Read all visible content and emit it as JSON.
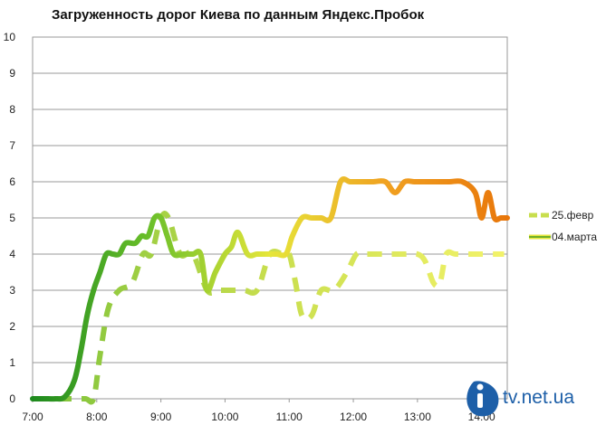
{
  "chart_data": {
    "type": "line",
    "title": "Загруженность дорог Киева по данным Яндекс.Пробок",
    "xlabel": "",
    "ylabel": "",
    "x_ticks": [
      "7:00",
      "8:00",
      "9:00",
      "10:00",
      "11:00",
      "12:00",
      "13:00",
      "14:00"
    ],
    "x_range": [
      7.0,
      14.4
    ],
    "y_ticks": [
      "0",
      "1",
      "2",
      "3",
      "4",
      "5",
      "6",
      "7",
      "8",
      "9",
      "10"
    ],
    "ylim": [
      0,
      10
    ],
    "grid": "horizontal",
    "legend_position": "right",
    "series": [
      {
        "name": "25.февр",
        "style": "dashed",
        "colors": [
          "#7cc23a",
          "#c8de4e",
          "#f3f36a"
        ],
        "x": [
          7.0,
          7.3,
          7.55,
          7.82,
          7.95,
          8.05,
          8.18,
          8.35,
          8.55,
          8.72,
          8.85,
          9.0,
          9.12,
          9.3,
          9.5,
          9.72,
          9.9,
          10.1,
          10.3,
          10.5,
          10.7,
          10.9,
          11.0,
          11.1,
          11.2,
          11.35,
          11.5,
          11.7,
          11.9,
          12.05,
          12.2,
          12.5,
          12.8,
          13.0,
          13.12,
          13.25,
          13.35,
          13.45,
          13.6,
          13.9,
          14.2,
          14.35
        ],
        "y": [
          0,
          0,
          0,
          0,
          0,
          1.2,
          2.5,
          3.0,
          3.2,
          4.0,
          4.0,
          5.0,
          5.0,
          4.0,
          4.0,
          3.0,
          3.0,
          3.0,
          3.0,
          3.0,
          4.0,
          4.0,
          4.0,
          3.2,
          2.3,
          2.3,
          3.0,
          3.0,
          3.5,
          4.0,
          4.0,
          4.0,
          4.0,
          4.0,
          3.8,
          3.2,
          3.2,
          4.0,
          4.0,
          4.0,
          4.0,
          4.0
        ]
      },
      {
        "name": "04.марта",
        "style": "solid",
        "colors": [
          "#1e8a1e",
          "#6cc02a",
          "#e6e63a",
          "#f0a020",
          "#e8760a"
        ],
        "x": [
          7.0,
          7.12,
          7.25,
          7.35,
          7.5,
          7.65,
          7.75,
          7.85,
          7.95,
          8.05,
          8.15,
          8.25,
          8.35,
          8.45,
          8.6,
          8.7,
          8.8,
          8.9,
          9.0,
          9.1,
          9.2,
          9.35,
          9.5,
          9.62,
          9.72,
          9.85,
          10.0,
          10.1,
          10.2,
          10.35,
          10.5,
          10.65,
          10.8,
          10.95,
          11.05,
          11.2,
          11.35,
          11.5,
          11.65,
          11.8,
          11.95,
          12.1,
          12.3,
          12.5,
          12.65,
          12.8,
          12.95,
          13.1,
          13.3,
          13.5,
          13.7,
          13.9,
          14.0,
          14.1,
          14.2,
          14.3,
          14.4
        ],
        "y": [
          0,
          0,
          0,
          0,
          0.05,
          0.5,
          1.3,
          2.3,
          3.0,
          3.5,
          4.0,
          4.0,
          4.0,
          4.3,
          4.3,
          4.5,
          4.5,
          5.0,
          5.0,
          4.5,
          4.0,
          4.0,
          4.0,
          4.0,
          3.0,
          3.5,
          4.0,
          4.2,
          4.6,
          4.0,
          4.0,
          4.0,
          4.0,
          4.0,
          4.5,
          5.0,
          5.0,
          5.0,
          5.0,
          6.0,
          6.0,
          6.0,
          6.0,
          6.0,
          5.7,
          6.0,
          6.0,
          6.0,
          6.0,
          6.0,
          6.0,
          5.7,
          5.0,
          5.7,
          5.0,
          5.0,
          5.0
        ]
      }
    ]
  },
  "watermark": {
    "text": "tv.net.ua",
    "color": "#1d5fa8"
  }
}
